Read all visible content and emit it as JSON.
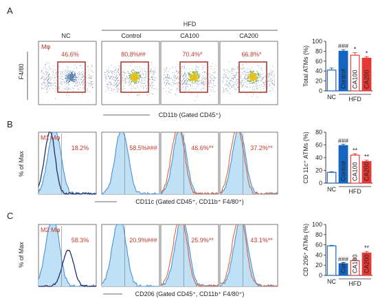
{
  "panel_letters": [
    "A",
    "B",
    "C"
  ],
  "colors": {
    "nc_line": "#1f2d6b",
    "blue_line": "#4a90d9",
    "blue_fill": "#bfe0f5",
    "orange_line": "#d9663a",
    "red_text": "#c0392b",
    "bar_blue": "#1565c0",
    "bar_red": "#e53935"
  },
  "group_header": "HFD",
  "group_labels": [
    "NC",
    "Control",
    "CA100",
    "CA200"
  ],
  "panelA": {
    "gate_label": "Mφ",
    "y_label": "F4/80",
    "x_label": "CD11b (Gated CD45⁺)",
    "percents": [
      "46.6%",
      "80.8%##",
      "70.4%*",
      "66.8%*"
    ]
  },
  "panelB": {
    "gate_label": "M1 Mφ",
    "y_label": "% of Max",
    "x_label": "CD11c (Gated CD45⁺, CD11b⁺ F4/80⁺)",
    "percents": [
      "18.2%",
      "58.5%###",
      "46.6%**",
      "37.2%**"
    ]
  },
  "panelC": {
    "gate_label": "M2 Mφ",
    "y_label": "% of Max",
    "x_label": "CD206 (Gated CD45⁺, CD11b⁺ F4/80⁺)",
    "percents": [
      "58.3%",
      "20.9%###",
      "25.9%**",
      "43.1%**"
    ]
  },
  "chart_data": [
    {
      "type": "bar",
      "ylabel": "Total ATMs (%)",
      "ylim": [
        0,
        100
      ],
      "yticks": [
        0,
        20,
        40,
        60,
        80,
        100
      ],
      "categories": [
        "NC",
        "Control",
        "CA100",
        "CA200"
      ],
      "bar_labels": [
        "",
        "Control",
        "CA100",
        "CA200"
      ],
      "values": [
        42,
        80,
        72,
        66
      ],
      "errors": [
        4,
        3,
        5,
        3
      ],
      "annotations": [
        "",
        "###",
        "*",
        "*"
      ],
      "group_labels": [
        "NC",
        "HFD"
      ]
    },
    {
      "type": "bar",
      "ylabel": "CD 11c⁺ ATMs (%)",
      "ylim": [
        0,
        80
      ],
      "yticks": [
        0,
        20,
        40,
        60,
        80
      ],
      "categories": [
        "NC",
        "Control",
        "CA100",
        "CA200"
      ],
      "bar_labels": [
        "",
        "Control",
        "CA100",
        "CA200"
      ],
      "values": [
        17,
        59,
        44,
        34
      ],
      "errors": [
        1,
        2,
        2,
        2
      ],
      "annotations": [
        "",
        "###",
        "**",
        "**"
      ],
      "group_labels": [
        "NC",
        "HFD"
      ]
    },
    {
      "type": "bar",
      "ylabel": "CD 206⁺ ATMs (%)",
      "ylim": [
        0,
        100
      ],
      "yticks": [
        0,
        20,
        40,
        60,
        80,
        100
      ],
      "categories": [
        "NC",
        "Control",
        "CA100",
        "CA200"
      ],
      "bar_labels": [
        "",
        "Con",
        "CA100",
        "CA200"
      ],
      "values": [
        58,
        23,
        29,
        44
      ],
      "errors": [
        1,
        2,
        3,
        3
      ],
      "annotations": [
        "",
        "###",
        "",
        "**"
      ],
      "group_labels": [
        "NC",
        "HFD"
      ]
    }
  ]
}
